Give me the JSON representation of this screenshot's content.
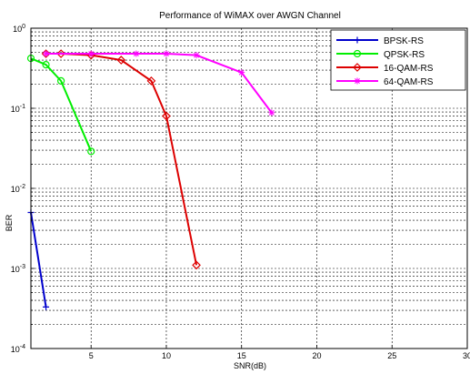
{
  "chart_data": {
    "type": "line",
    "title": "Performance of WiMAX over AWGN Channel",
    "xlabel": "SNR(dB)",
    "ylabel": "BER",
    "xlim": [
      1,
      30
    ],
    "ylim": [
      0.0001,
      1
    ],
    "yscale": "log",
    "grid": true,
    "legend_position": "top-right",
    "x_ticks": [
      "5",
      "10",
      "15",
      "20",
      "25",
      "30"
    ],
    "y_ticks": [
      {
        "base": "10",
        "exp": "0"
      },
      {
        "base": "10",
        "exp": "-1"
      },
      {
        "base": "10",
        "exp": "-2"
      },
      {
        "base": "10",
        "exp": "-3"
      },
      {
        "base": "10",
        "exp": "-4"
      }
    ],
    "series": [
      {
        "name": "BPSK-RS",
        "color": "#0000cc",
        "marker": "plus",
        "x": [
          1,
          2
        ],
        "y": [
          0.005,
          0.00033
        ]
      },
      {
        "name": "QPSK-RS",
        "color": "#00ee00",
        "marker": "circle",
        "x": [
          1,
          2,
          3,
          5
        ],
        "y": [
          0.42,
          0.35,
          0.22,
          0.029
        ]
      },
      {
        "name": "16-QAM-RS",
        "color": "#dd0000",
        "marker": "diamond",
        "x": [
          2,
          3,
          5,
          7,
          9,
          10,
          12
        ],
        "y": [
          0.48,
          0.48,
          0.46,
          0.4,
          0.22,
          0.08,
          0.0011
        ]
      },
      {
        "name": "64-QAM-RS",
        "color": "#ff00ff",
        "marker": "star",
        "x": [
          2,
          5,
          8,
          10,
          12,
          15,
          17
        ],
        "y": [
          0.48,
          0.48,
          0.48,
          0.48,
          0.46,
          0.28,
          0.088
        ]
      }
    ]
  }
}
